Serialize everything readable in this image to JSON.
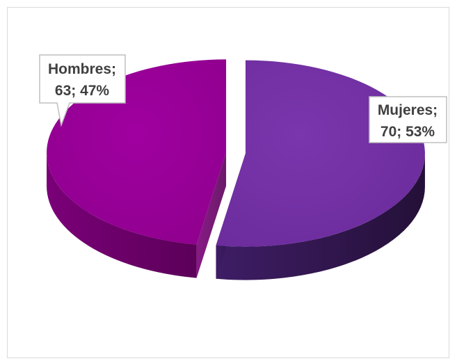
{
  "chart_data": {
    "type": "pie",
    "style": "3d-exploded",
    "slices": [
      {
        "label": "Mujeres",
        "value": 70,
        "percent": 53,
        "color": "#7030a0",
        "label_text": [
          "Mujeres;",
          "70; 53%"
        ]
      },
      {
        "label": "Hombres",
        "value": 63,
        "percent": 47,
        "color": "#9b0099",
        "label_text": [
          "Hombres;",
          "63; 47%"
        ]
      }
    ],
    "legend": "none",
    "title": ""
  }
}
